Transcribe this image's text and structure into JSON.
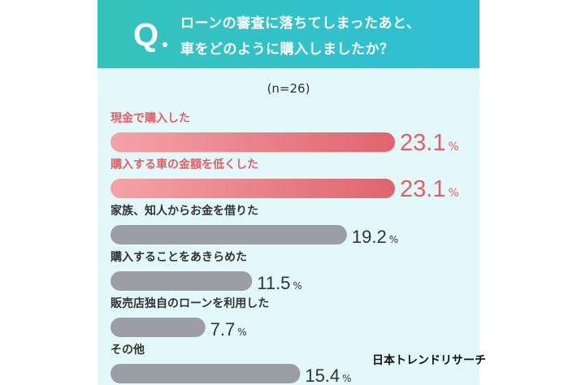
{
  "question": {
    "mark": "Q",
    "line1": "ローンの審査に落ちてしまったあと、",
    "line2": "車をどのように購入しましたか？"
  },
  "sample": "(n=26)",
  "brand": "日本トレンドリサーチ",
  "colors": {
    "panel_bg": "#e3f8f8",
    "header_start": "#35c4ba",
    "header_end": "#2fc0d6",
    "highlight_bar_start": "#f4a3a8",
    "highlight_bar_end": "#e0646d",
    "highlight_text": "#e06068",
    "normal_bar": "#9b9ea3",
    "normal_text": "#333333"
  },
  "chart_data": {
    "type": "bar",
    "orientation": "horizontal",
    "unit": "%",
    "categories": [
      "現金で購入した",
      "購入する車の金額を低くした",
      "家族、知人からお金を借りた",
      "購入することをあきらめた",
      "販売店独自のローンを利用した",
      "その他"
    ],
    "values": [
      23.1,
      23.1,
      19.2,
      11.5,
      7.7,
      15.4
    ],
    "value_labels": [
      "23.1",
      "23.1",
      "19.2",
      "11.5",
      "7.7",
      "15.4"
    ],
    "highlighted": [
      true,
      true,
      false,
      false,
      false,
      false
    ],
    "xlim": [
      0,
      23.1
    ]
  }
}
